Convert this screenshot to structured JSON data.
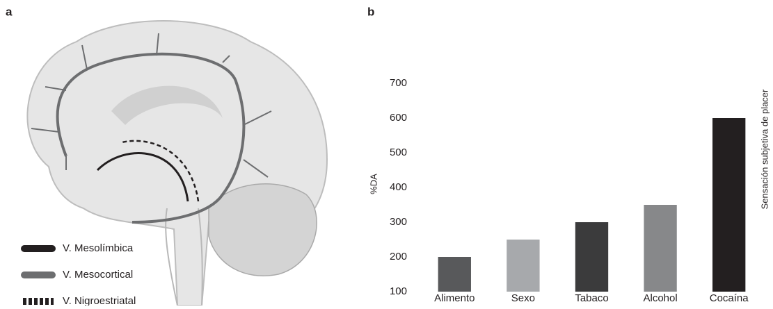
{
  "panel_labels": [
    "a",
    "b"
  ],
  "legend": [
    "V. Mesolímbica",
    "V. Mesocortical",
    "V. Nigroestriatal"
  ],
  "chart_data": {
    "type": "bar",
    "y_label": "%DA",
    "right_label": "Sensación subjetiva de placer",
    "categories": [
      "Alimento",
      "Sexo",
      "Tabaco",
      "Alcohol",
      "Cocaína"
    ],
    "values": [
      200,
      250,
      300,
      350,
      600
    ],
    "colors": [
      "#58595b",
      "#a7a9ac",
      "#3b3b3c",
      "#87888a",
      "#231f20"
    ],
    "ylim": [
      100,
      720
    ],
    "yticks": [
      100,
      200,
      300,
      400,
      500,
      600,
      700
    ],
    "grid": false
  }
}
